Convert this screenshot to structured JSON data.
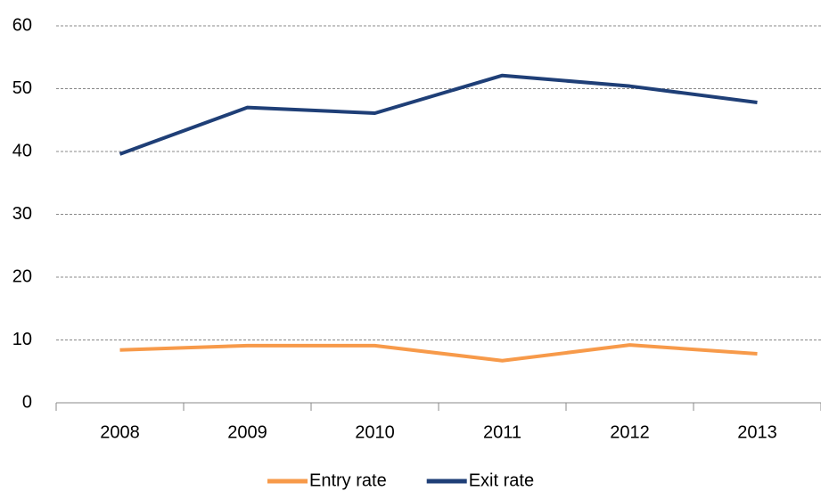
{
  "chart_data": {
    "type": "line",
    "categories": [
      "2008",
      "2009",
      "2010",
      "2011",
      "2012",
      "2013"
    ],
    "series": [
      {
        "name": "Entry rate",
        "color": "#f79a4a",
        "values": [
          8.4,
          9.1,
          9.1,
          6.7,
          9.2,
          7.8
        ]
      },
      {
        "name": "Exit rate",
        "color": "#1f3f77",
        "values": [
          39.6,
          47.0,
          46.1,
          52.1,
          50.4,
          47.8
        ]
      }
    ],
    "ylim": [
      0,
      60
    ],
    "yticks": [
      0,
      10,
      20,
      30,
      40,
      50,
      60
    ],
    "grid": true,
    "legend": "bottom"
  }
}
